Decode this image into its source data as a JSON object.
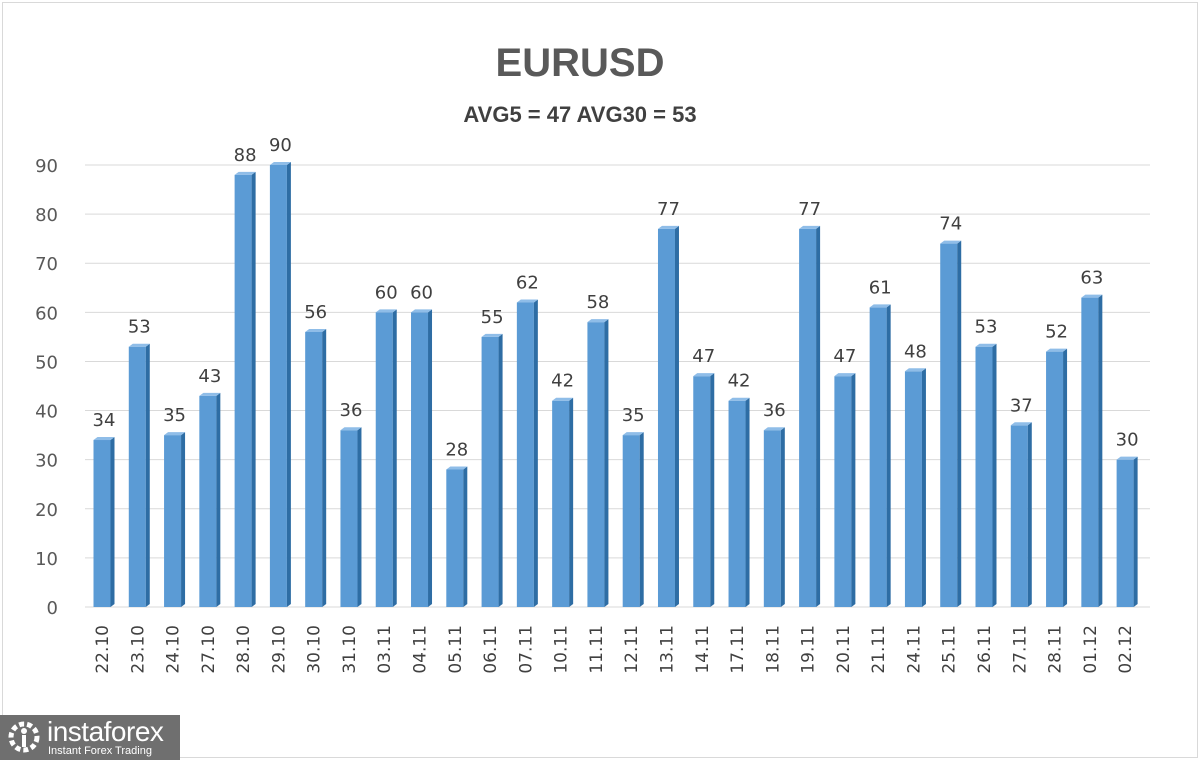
{
  "chart_data": {
    "type": "bar",
    "title": "EURUSD",
    "subtitle": "AVG5 = 47 AVG30 = 53",
    "categories": [
      "22.10",
      "23.10",
      "24.10",
      "27.10",
      "28.10",
      "29.10",
      "30.10",
      "31.10",
      "03.11",
      "04.11",
      "05.11",
      "06.11",
      "07.11",
      "10.11",
      "11.11",
      "12.11",
      "13.11",
      "14.11",
      "17.11",
      "18.11",
      "19.11",
      "20.11",
      "21.11",
      "24.11",
      "25.11",
      "26.11",
      "27.11",
      "28.11",
      "01.12",
      "02.12"
    ],
    "values": [
      34,
      53,
      35,
      43,
      88,
      90,
      56,
      36,
      60,
      60,
      28,
      55,
      62,
      42,
      58,
      35,
      77,
      47,
      42,
      36,
      77,
      47,
      61,
      48,
      74,
      53,
      37,
      52,
      63,
      30
    ],
    "yticks": [
      0,
      10,
      20,
      30,
      40,
      50,
      60,
      70,
      80,
      90
    ],
    "ylim": [
      0,
      90
    ],
    "grid": true,
    "data_labels": true,
    "bar_color": "#5b9bd5"
  },
  "logo": {
    "name": "instaforex",
    "tagline": "Instant Forex Trading"
  }
}
